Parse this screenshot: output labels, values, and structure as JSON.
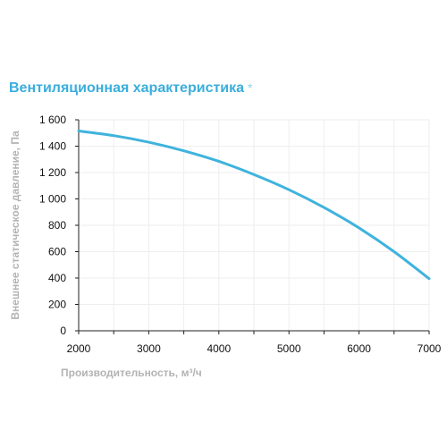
{
  "chart_data": {
    "type": "line",
    "title": "Вентиляционная характеристика",
    "title_suffix": "*",
    "xlabel": "Производительность, м³/ч",
    "ylabel": "Внешнее статическое давление, Па",
    "x": [
      2000,
      2500,
      3000,
      3500,
      4000,
      4500,
      5000,
      5500,
      6000,
      6500,
      7000
    ],
    "series": [
      {
        "values": [
          1515,
          1480,
          1430,
          1365,
          1285,
          1185,
          1070,
          935,
          780,
          600,
          395
        ]
      }
    ],
    "xlim": [
      2000,
      7000
    ],
    "ylim": [
      0,
      1600
    ],
    "xticks": [
      2000,
      3000,
      4000,
      5000,
      6000,
      7000
    ],
    "xtick_labels": [
      "2000",
      "3000",
      "4000",
      "5000",
      "6000",
      "7000"
    ],
    "yticks": [
      0,
      200,
      400,
      600,
      800,
      1000,
      1200,
      1400,
      1600
    ],
    "ytick_labels": [
      "0",
      "200",
      "400",
      "600",
      "800",
      "1 000",
      "1 200",
      "1 400",
      "1 600"
    ],
    "grid": true,
    "legend": "none",
    "colors": {
      "line": "#3fb3dd",
      "title": "#3aaedc",
      "axis_title": "#b3b3b3",
      "grid": "#eeeeee",
      "axis": "#222222"
    }
  }
}
